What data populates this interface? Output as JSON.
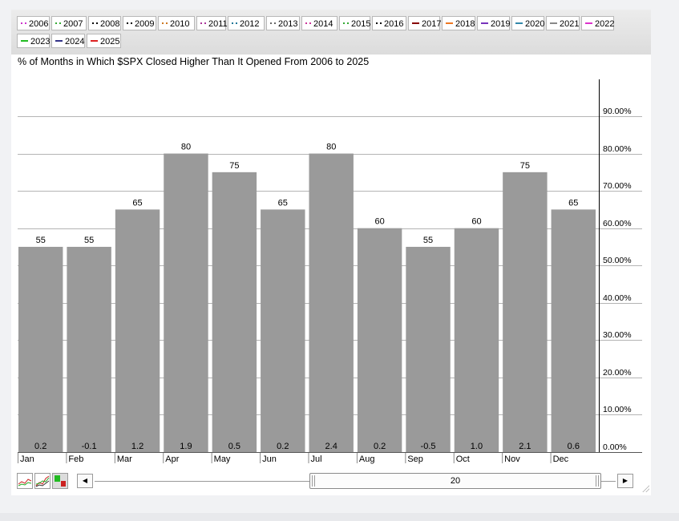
{
  "legend": [
    {
      "label": "2006",
      "color": "#cc33cc",
      "dash": "dot"
    },
    {
      "label": "2007",
      "color": "#33aa33",
      "dash": "dot"
    },
    {
      "label": "2008",
      "color": "#000000",
      "dash": "dot"
    },
    {
      "label": "2009",
      "color": "#000000",
      "dash": "dot"
    },
    {
      "label": "2010",
      "color": "#cc7722",
      "dash": "dot"
    },
    {
      "label": "2011",
      "color": "#aa3399",
      "dash": "dot"
    },
    {
      "label": "2012",
      "color": "#227799",
      "dash": "dot"
    },
    {
      "label": "2013",
      "color": "#666666",
      "dash": "dot"
    },
    {
      "label": "2014",
      "color": "#cc3399",
      "dash": "dot"
    },
    {
      "label": "2015",
      "color": "#33aa33",
      "dash": "dot"
    },
    {
      "label": "2016",
      "color": "#000000",
      "dash": "dot"
    },
    {
      "label": "2017",
      "color": "#880000",
      "dash": "solid"
    },
    {
      "label": "2018",
      "color": "#ee7722",
      "dash": "solid"
    },
    {
      "label": "2019",
      "color": "#7733bb",
      "dash": "solid"
    },
    {
      "label": "2020",
      "color": "#3388aa",
      "dash": "solid"
    },
    {
      "label": "2021",
      "color": "#888888",
      "dash": "solid"
    },
    {
      "label": "2022",
      "color": "#dd33cc",
      "dash": "solid"
    },
    {
      "label": "2023",
      "color": "#22bb22",
      "dash": "solid"
    },
    {
      "label": "2024",
      "color": "#333388",
      "dash": "solid"
    },
    {
      "label": "2025",
      "color": "#dd2222",
      "dash": "solid"
    }
  ],
  "chart_data": {
    "type": "bar",
    "title": "% of Months in Which $SPX Closed Higher Than It Opened From 2006 to 2025",
    "categories": [
      "Jan",
      "Feb",
      "Mar",
      "Apr",
      "May",
      "Jun",
      "Jul",
      "Aug",
      "Sep",
      "Oct",
      "Nov",
      "Dec"
    ],
    "values": [
      55,
      55,
      65,
      80,
      75,
      65,
      80,
      60,
      55,
      60,
      75,
      65
    ],
    "value_labels": [
      "55",
      "55",
      "65",
      "80",
      "75",
      "65",
      "80",
      "60",
      "55",
      "60",
      "75",
      "65"
    ],
    "bottom_labels": [
      "0.2",
      "-0.1",
      "1.2",
      "1.9",
      "0.5",
      "0.2",
      "2.4",
      "0.2",
      "-0.5",
      "1.0",
      "2.1",
      "0.6"
    ],
    "yticks": [
      0,
      10,
      20,
      30,
      40,
      50,
      60,
      70,
      80,
      90
    ],
    "ytick_labels": [
      "0.00%",
      "10.00%",
      "20.00%",
      "30.00%",
      "40.00%",
      "50.00%",
      "60.00%",
      "70.00%",
      "80.00%",
      "90.00%"
    ],
    "ylim": [
      0,
      100
    ],
    "bar_color": "#9a9a9a",
    "grid": true,
    "y_axis_side": "right"
  },
  "controls": {
    "slider_value": "20",
    "left_arrow": "◀",
    "right_arrow": "▶"
  }
}
